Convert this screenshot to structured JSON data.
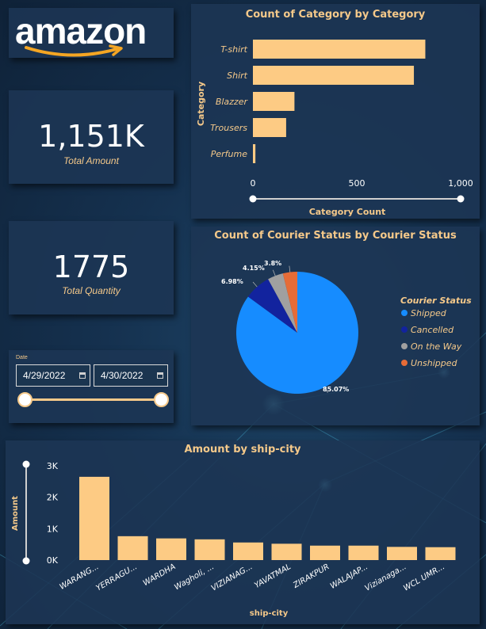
{
  "logo": {
    "text": "amazon"
  },
  "kpis": {
    "total_amount": {
      "value": "1,151K",
      "label": "Total Amount"
    },
    "total_quantity": {
      "value": "1775",
      "label": "Total Quantity"
    }
  },
  "date_filter": {
    "label": "Date",
    "start": "4/29/2022",
    "end": "4/30/2022",
    "range_fraction": [
      0,
      1
    ]
  },
  "colors": {
    "bar": "#fdcb84",
    "accent": "#f5c98a",
    "shipped": "#168cff",
    "cancelled": "#12239e",
    "on_the_way": "#a0a0a0",
    "unshipped": "#e66c37"
  },
  "chart_data": [
    {
      "type": "bar",
      "orientation": "horizontal",
      "title": "Count of Category by Category",
      "xlabel": "Category Count",
      "ylabel": "Category",
      "categories": [
        "T-shirt",
        "Shirt",
        "Blazzer",
        "Trousers",
        "Perfume"
      ],
      "values": [
        830,
        775,
        200,
        160,
        12
      ],
      "xlim": [
        0,
        1000
      ],
      "xticks": [
        "0",
        "500",
        "1,000"
      ],
      "grid": false
    },
    {
      "type": "pie",
      "title": "Count of Courier Status by Courier Status",
      "legend_title": "Courier Status",
      "legend_position": "right",
      "labels": [
        "Shipped",
        "Cancelled",
        "On the Way",
        "Unshipped"
      ],
      "values": [
        85.07,
        6.98,
        4.15,
        3.8
      ],
      "data_labels": [
        "85.07%",
        "6.98%",
        "4.15%",
        "3.8%"
      ]
    },
    {
      "type": "bar",
      "orientation": "vertical",
      "title": "Amount by ship-city",
      "xlabel": "ship-city",
      "ylabel": "Amount",
      "categories": [
        "WARANG...",
        "YERRAGU...",
        "WARDHA",
        "Wagholi, ...",
        "VIZIANAG...",
        "YAVATMAL",
        "ZIRAKPUR",
        "WALAJAP...",
        "Vizianaga...",
        "WCL UMR..."
      ],
      "values": [
        2650,
        760,
        690,
        660,
        560,
        520,
        460,
        460,
        420,
        410
      ],
      "ylim": [
        0,
        3000
      ],
      "yticks": [
        "0K",
        "1K",
        "2K",
        "3K"
      ],
      "grid": false
    }
  ]
}
